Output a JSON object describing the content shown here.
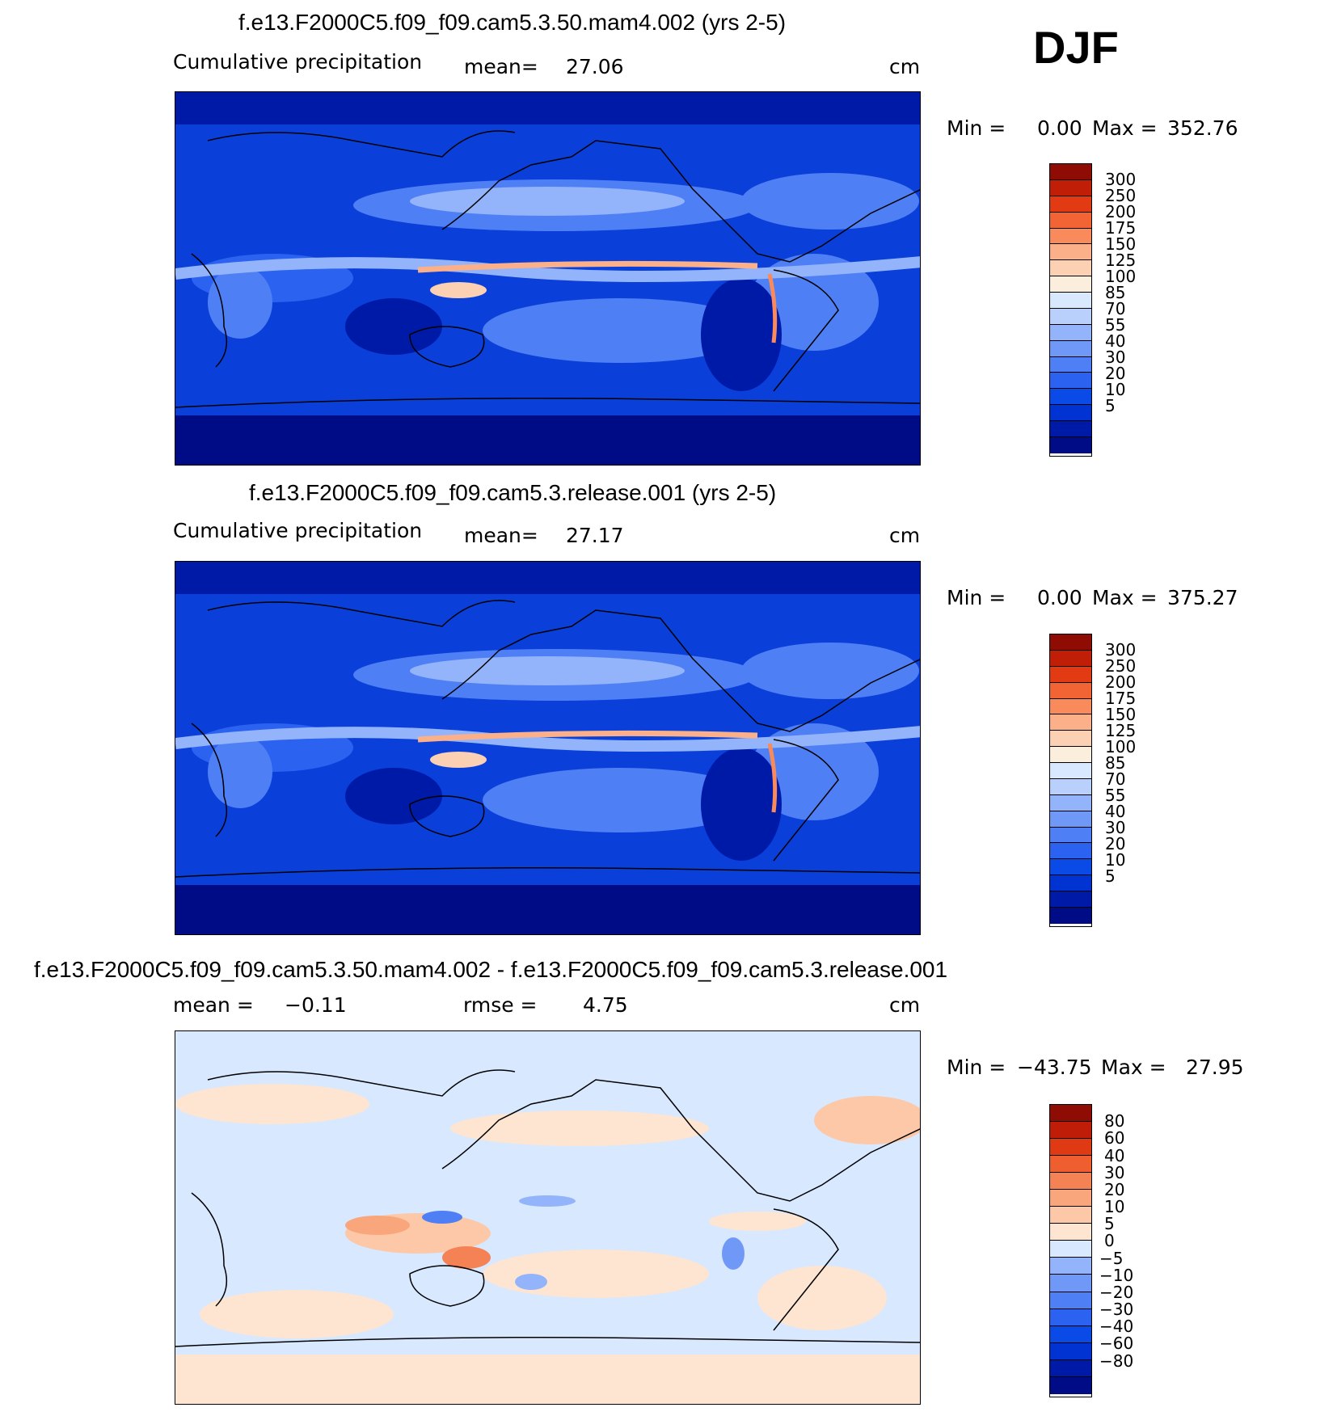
{
  "season": "DJF",
  "palette_precip": [
    "#000c85",
    "#001aa8",
    "#0033d1",
    "#0a4ae6",
    "#2c62f0",
    "#4f7ff5",
    "#7099f7",
    "#93b4fa",
    "#b9d0fc",
    "#d8e8ff",
    "#fbeedd",
    "#fcd0b3",
    "#fcb08a",
    "#f98a5c",
    "#f36434",
    "#e23b13",
    "#c01e07",
    "#8f0c04"
  ],
  "palette_diff": [
    "#000c85",
    "#001aa8",
    "#0033d1",
    "#0a4ae6",
    "#2c62f0",
    "#4f7ff5",
    "#7099f7",
    "#93b4fa",
    "#d8e8ff",
    "#fde5d1",
    "#fcc8a7",
    "#f9a67c",
    "#f58254",
    "#ef5e2f",
    "#df3a13",
    "#bf1d07",
    "#8f0c04"
  ],
  "panels": [
    {
      "title": "f.e13.F2000C5.f09_f09.cam5.3.50.mam4.002 (yrs 2-5)",
      "left_label": "Cumulative  precipitation",
      "mean_label": "mean=",
      "mean_value": "27.06",
      "units": "cm",
      "min_label": "Min  =",
      "min_value": "0.00",
      "max_label": "Max  =",
      "max_value": "352.76",
      "colorbar_labels": [
        "300",
        "250",
        "200",
        "175",
        "150",
        "125",
        "100",
        "85",
        "70",
        "55",
        "40",
        "30",
        "20",
        "10",
        "5"
      ]
    },
    {
      "title": "f.e13.F2000C5.f09_f09.cam5.3.release.001 (yrs 2-5)",
      "left_label": "Cumulative  precipitation",
      "mean_label": "mean=",
      "mean_value": "27.17",
      "units": "cm",
      "min_label": "Min  =",
      "min_value": "0.00",
      "max_label": "Max  =",
      "max_value": "375.27",
      "colorbar_labels": [
        "300",
        "250",
        "200",
        "175",
        "150",
        "125",
        "100",
        "85",
        "70",
        "55",
        "40",
        "30",
        "20",
        "10",
        "5"
      ]
    },
    {
      "title": "f.e13.F2000C5.f09_f09.cam5.3.50.mam4.002 - f.e13.F2000C5.f09_f09.cam5.3.release.001",
      "left_label": "mean  =",
      "mean_value": "−0.11",
      "rmse_label": "rmse  =",
      "rmse_value": "4.75",
      "units": "cm",
      "min_label": "Min  =",
      "min_value": "−43.75",
      "max_label": "Max  =",
      "max_value": "27.95",
      "colorbar_labels": [
        "80",
        "60",
        "40",
        "30",
        "20",
        "10",
        "5",
        "0",
        "−5",
        "−10",
        "−20",
        "−30",
        "−40",
        "−60",
        "−80"
      ]
    }
  ]
}
